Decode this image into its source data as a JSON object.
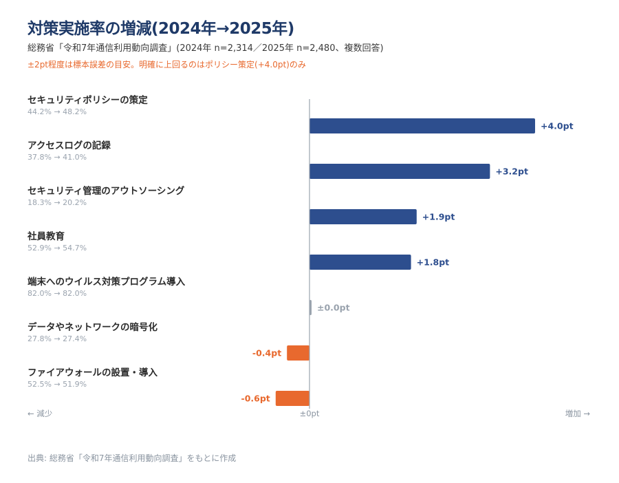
{
  "title": "対策実施率の増減(2024年→2025年)",
  "subtitle": "総務省「令和7年通信利用動向調査」(2024年 n=2,314／2025年 n=2,480、複数回答)",
  "note": "±2pt程度は標本誤差の目安。明確に上回るのはポリシー策定(+4.0pt)のみ",
  "source": "出典: 総務省「令和7年通信利用動向調査」をもとに作成",
  "colors": {
    "positive": "#2d4e8e",
    "negative": "#e8692e",
    "zero": "#9aa3ae",
    "axis": "#9aa3ae"
  },
  "chart_data": {
    "type": "bar",
    "orientation": "horizontal",
    "categories": [
      "セキュリティポリシーの策定",
      "アクセスログの記録",
      "セキュリティ管理のアウトソーシング",
      "社員教育",
      "端末へのウイルス対策プログラム導入",
      "データやネットワークの暗号化",
      "ファイアウォールの設置・導入"
    ],
    "sublabels": [
      "44.2% → 48.2%",
      "37.8% → 41.0%",
      "18.3% → 20.2%",
      "52.9% → 54.7%",
      "82.0% → 82.0%",
      "27.8% → 27.4%",
      "52.5% → 51.9%"
    ],
    "values": [
      4.0,
      3.2,
      1.9,
      1.8,
      0.0,
      -0.4,
      -0.6
    ],
    "value_labels": [
      "+4.0pt",
      "+3.2pt",
      "+1.9pt",
      "+1.8pt",
      "±0.0pt",
      "-0.4pt",
      "-0.6pt"
    ],
    "axis": {
      "left_label": "← 減少",
      "center_label": "±0pt",
      "right_label": "増加 →"
    },
    "xlim": [
      -5.5,
      5.0
    ]
  }
}
